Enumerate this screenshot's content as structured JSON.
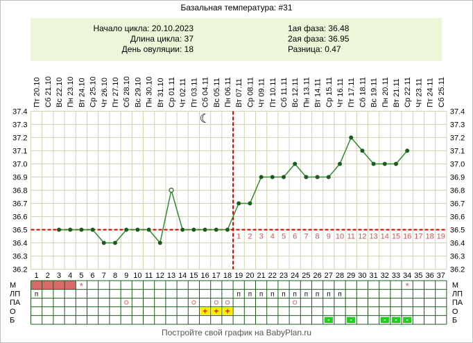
{
  "title": "Базальная температура: #31",
  "info": {
    "cycle_start": "Начало цикла: 20.10.2023",
    "cycle_length": "Длина цикла: 37",
    "ovulation_day": "День овуляции: 18",
    "phase1": "1ая фаза: 36.48",
    "phase2": "2ая фаза: 36.95",
    "difference": "Разница: 0.47"
  },
  "footer": "Постройте свой график на BabyPlan.ru",
  "colors": {
    "grid": "#d2d2b4",
    "line": "#2e8b2e",
    "point": "#1e5a1e",
    "coverline": "#cc0000",
    "menses": "#d96a6a",
    "post_ovulation_numbers": "#cc5555",
    "yellow_cell": "#ffee00",
    "green_cell": "#22cc22"
  },
  "chart_data": {
    "type": "line",
    "x": [
      1,
      2,
      3,
      4,
      5,
      6,
      7,
      8,
      9,
      10,
      11,
      12,
      13,
      14,
      15,
      16,
      17,
      18,
      19,
      20,
      21,
      22,
      23,
      24,
      25,
      26,
      27,
      28,
      29,
      30,
      31,
      32,
      33,
      34,
      35,
      36,
      37
    ],
    "dates": [
      "Пт 20.10",
      "Сб 21.10",
      "Вс 22.10",
      "Пн 23.10",
      "Вт 24.10",
      "Ср 25.10",
      "Чт 26.10",
      "Пт 27.10",
      "Сб 28.10",
      "Вс 29.10",
      "Пн 30.10",
      "Вт 31.10",
      "Ср 01.11",
      "Чт 02.11",
      "Пт 03.11",
      "Сб 04.11",
      "Вс 05.11",
      "Пн 06.11",
      "Вт 07.11",
      "Ср 08.11",
      "Чт 09.11",
      "Пт 10.11",
      "Сб 11.11",
      "Вс 12.11",
      "Пн 13.11",
      "Вт 14.11",
      "Ср 15.11",
      "Чт 16.11",
      "Пт 17.11",
      "Сб 18.11",
      "Вс 19.11",
      "Пн 20.11",
      "Вт 21.11",
      "Ср 22.11",
      "Чт 23.11",
      "Пт 24.11",
      "Сб 25.11"
    ],
    "series": [
      {
        "values": [
          null,
          null,
          36.5,
          36.5,
          36.5,
          36.5,
          36.4,
          36.4,
          36.5,
          36.5,
          36.5,
          36.4,
          36.8,
          36.5,
          36.5,
          36.5,
          36.5,
          36.5,
          36.7,
          36.7,
          36.9,
          36.9,
          36.9,
          37.0,
          36.9,
          36.9,
          36.9,
          37.0,
          37.2,
          37.1,
          37.0,
          37.0,
          37.0,
          37.1,
          null,
          null,
          null
        ]
      }
    ],
    "highlighted_days": [
      13
    ],
    "ylim": [
      36.2,
      37.4
    ],
    "yticks": [
      "36.2",
      "36.3",
      "36.4",
      "36.5",
      "36.6",
      "36.7",
      "36.8",
      "36.9",
      "37.0",
      "37.1",
      "37.2",
      "37.3",
      "37.4"
    ],
    "coverline": 36.5,
    "ovulation_day": 18,
    "post_ovulation_day_numbers": [
      "1",
      "2",
      "3",
      "4",
      "5",
      "6",
      "7",
      "8",
      "9",
      "10",
      "11",
      "12",
      "13",
      "14",
      "15",
      "16",
      "17",
      "18",
      "19"
    ],
    "moon_day": 16,
    "grid": true,
    "rows": [
      {
        "label": "М",
        "marks": [
          {
            "day": 1,
            "kind": "fill"
          },
          {
            "day": 2,
            "kind": "fill"
          },
          {
            "day": 3,
            "kind": "fill"
          },
          {
            "day": 4,
            "kind": "fill"
          },
          {
            "day": 5,
            "kind": "star"
          },
          {
            "day": 34,
            "kind": "star"
          }
        ]
      },
      {
        "label": "ЛП",
        "marks": [
          {
            "day": 1,
            "kind": "п"
          },
          {
            "day": 19,
            "kind": "п"
          },
          {
            "day": 20,
            "kind": "п"
          },
          {
            "day": 21,
            "kind": "п"
          },
          {
            "day": 22,
            "kind": "п"
          },
          {
            "day": 23,
            "kind": "п"
          },
          {
            "day": 24,
            "kind": "п"
          },
          {
            "day": 25,
            "kind": "п"
          },
          {
            "day": 26,
            "kind": "п"
          },
          {
            "day": 27,
            "kind": "п"
          },
          {
            "day": 28,
            "kind": "п"
          }
        ]
      },
      {
        "label": "ПА",
        "marks": [
          {
            "day": 9,
            "kind": "o"
          },
          {
            "day": 15,
            "kind": "o"
          },
          {
            "day": 17,
            "kind": "o"
          },
          {
            "day": 18,
            "kind": "o"
          },
          {
            "day": 24,
            "kind": "o"
          }
        ]
      },
      {
        "label": "О",
        "marks": [
          {
            "day": 16,
            "kind": "plus"
          },
          {
            "day": 17,
            "kind": "plus"
          },
          {
            "day": 18,
            "kind": "plus"
          }
        ]
      },
      {
        "label": "Б",
        "marks": [
          {
            "day": 27,
            "kind": "minus"
          },
          {
            "day": 29,
            "kind": "minus"
          },
          {
            "day": 32,
            "kind": "minus"
          },
          {
            "day": 33,
            "kind": "minus"
          },
          {
            "day": 34,
            "kind": "minus"
          }
        ]
      }
    ],
    "star_glyph": "*",
    "plus_glyph": "+",
    "minus_glyph": "-",
    "circle_glyph": "o",
    "moon_glyph": "☾"
  }
}
